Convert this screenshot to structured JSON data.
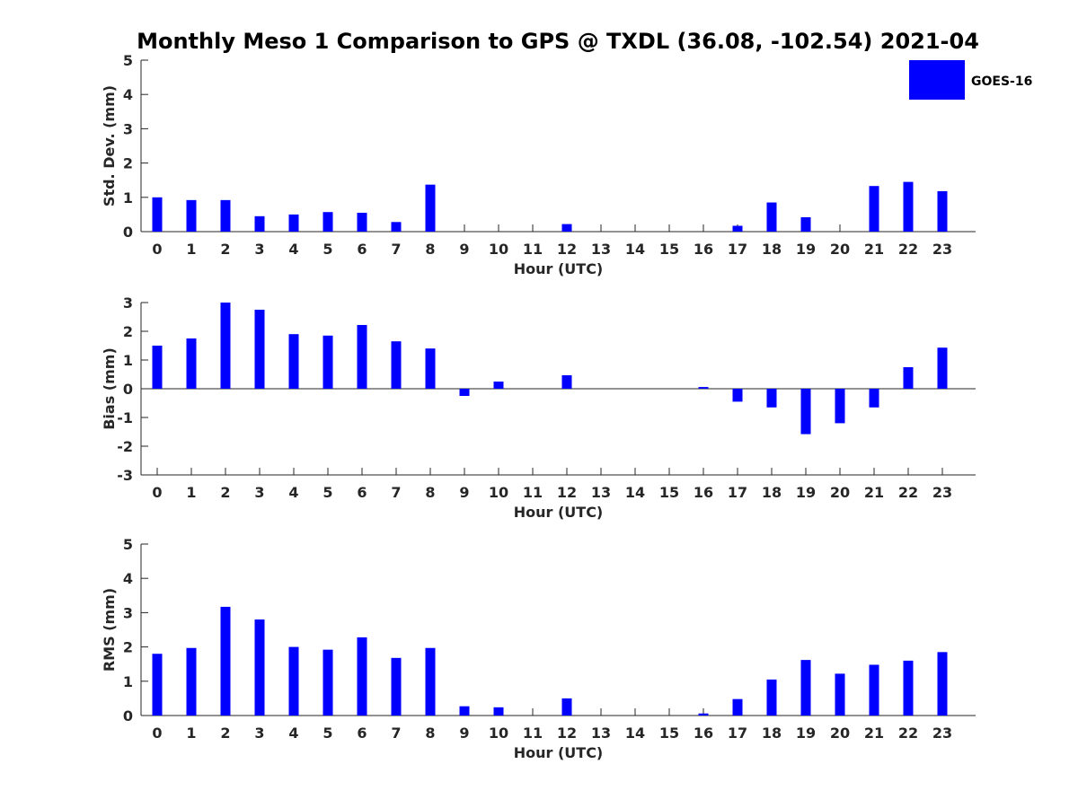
{
  "title": "Monthly Meso 1 Comparison to GPS @ TXDL (36.08, -102.54) 2021-04",
  "legend": {
    "label": "GOES-16",
    "color": "#0000ff"
  },
  "chart_data": [
    {
      "type": "bar",
      "title": "Monthly Meso 1 Comparison to GPS @ TXDL (36.08, -102.54) 2021-04",
      "xlabel": "Hour (UTC)",
      "ylabel": "Std. Dev. (mm)",
      "ylim": [
        0,
        5
      ],
      "yticks": [
        "0",
        "1",
        "2",
        "3",
        "4",
        "5"
      ],
      "categories": [
        "0",
        "1",
        "2",
        "3",
        "4",
        "5",
        "6",
        "7",
        "8",
        "9",
        "10",
        "11",
        "12",
        "13",
        "14",
        "15",
        "16",
        "17",
        "18",
        "19",
        "20",
        "21",
        "22",
        "23"
      ],
      "series": [
        {
          "name": "GOES-16",
          "color": "#0000ff",
          "values": [
            1.0,
            0.92,
            0.92,
            0.45,
            0.5,
            0.57,
            0.55,
            0.28,
            1.37,
            0,
            0,
            0,
            0.22,
            0,
            0,
            0,
            0,
            0.17,
            0.85,
            0.42,
            0,
            1.33,
            1.45,
            1.18
          ]
        }
      ]
    },
    {
      "type": "bar",
      "xlabel": "Hour (UTC)",
      "ylabel": "Bias (mm)",
      "ylim": [
        -3,
        3
      ],
      "yticks": [
        "-3",
        "-2",
        "-1",
        "0",
        "1",
        "2",
        "3"
      ],
      "categories": [
        "0",
        "1",
        "2",
        "3",
        "4",
        "5",
        "6",
        "7",
        "8",
        "9",
        "10",
        "11",
        "12",
        "13",
        "14",
        "15",
        "16",
        "17",
        "18",
        "19",
        "20",
        "21",
        "22",
        "23"
      ],
      "series": [
        {
          "name": "GOES-16",
          "color": "#0000ff",
          "values": [
            1.5,
            1.75,
            3.0,
            2.75,
            1.9,
            1.85,
            2.22,
            1.65,
            1.4,
            -0.25,
            0.25,
            0,
            0.47,
            0,
            0,
            0,
            0.06,
            -0.45,
            -0.65,
            -1.58,
            -1.2,
            -0.65,
            0.75,
            1.43
          ]
        }
      ]
    },
    {
      "type": "bar",
      "xlabel": "Hour (UTC)",
      "ylabel": "RMS (mm)",
      "ylim": [
        0,
        5
      ],
      "yticks": [
        "0",
        "1",
        "2",
        "3",
        "4",
        "5"
      ],
      "categories": [
        "0",
        "1",
        "2",
        "3",
        "4",
        "5",
        "6",
        "7",
        "8",
        "9",
        "10",
        "11",
        "12",
        "13",
        "14",
        "15",
        "16",
        "17",
        "18",
        "19",
        "20",
        "21",
        "22",
        "23"
      ],
      "series": [
        {
          "name": "GOES-16",
          "color": "#0000ff",
          "values": [
            1.8,
            1.97,
            3.17,
            2.8,
            2.0,
            1.92,
            2.28,
            1.68,
            1.97,
            0.27,
            0.24,
            0,
            0.5,
            0,
            0,
            0,
            0.06,
            0.48,
            1.05,
            1.62,
            1.22,
            1.48,
            1.6,
            1.85
          ]
        }
      ]
    }
  ]
}
